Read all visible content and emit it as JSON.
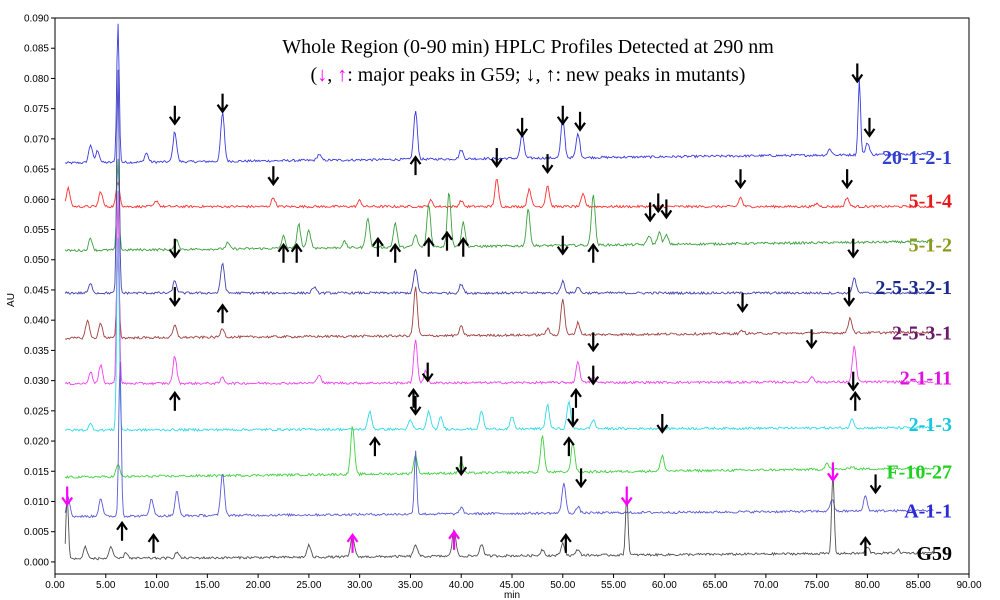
{
  "chart_data": {
    "type": "line",
    "title": "Whole Region (0-90 min) HPLC Profiles Detected at 290 nm",
    "subtitle_parts": [
      "(",
      "↓",
      ", ",
      "↑",
      ": major peaks in G59; ↓, ↑: new peaks in mutants)"
    ],
    "subtitle_colors": [
      "#000000",
      "#ff00ff",
      "#000000",
      "#ff00ff",
      "#000000"
    ],
    "xlabel": "min",
    "ylabel": "AU",
    "xlim": [
      0,
      90
    ],
    "ylim": [
      -0.002,
      0.09
    ],
    "xticks": [
      "0.00",
      "5.00",
      "10.00",
      "15.00",
      "20.00",
      "25.00",
      "30.00",
      "35.00",
      "40.00",
      "45.00",
      "50.00",
      "55.00",
      "60.00",
      "65.00",
      "70.00",
      "75.00",
      "80.00",
      "85.00",
      "90.00"
    ],
    "yticks": [
      "0.000",
      "0.005",
      "0.010",
      "0.015",
      "0.020",
      "0.025",
      "0.030",
      "0.035",
      "0.040",
      "0.045",
      "0.050",
      "0.055",
      "0.060",
      "0.065",
      "0.070",
      "0.075",
      "0.080",
      "0.085",
      "0.090"
    ],
    "series": [
      {
        "name": "20-1-2-1",
        "color": "#3a3ae0",
        "label_color": "#2f3fd0",
        "baseline": 0.066,
        "end_baseline": 0.0675,
        "peaks": [
          [
            3.5,
            0.003
          ],
          [
            4.2,
            0.002
          ],
          [
            6.2,
            0.023
          ],
          [
            9.0,
            0.0015
          ],
          [
            11.8,
            0.005
          ],
          [
            16.5,
            0.008
          ],
          [
            26,
            0.001
          ],
          [
            35.5,
            0.008
          ],
          [
            40,
            0.0015
          ],
          [
            46,
            0.004
          ],
          [
            50,
            0.0065
          ],
          [
            51.5,
            0.004
          ],
          [
            76.3,
            0.001
          ],
          [
            79.2,
            0.0125
          ],
          [
            80,
            0.002
          ]
        ]
      },
      {
        "name": "5-1-4",
        "color": "#ff3030",
        "label_color": "#e81818",
        "baseline": 0.0588,
        "end_baseline": 0.0588,
        "peaks": [
          [
            1.3,
            0.003
          ],
          [
            4.5,
            0.0025
          ],
          [
            6.2,
            0.004
          ],
          [
            10,
            0.001
          ],
          [
            21.5,
            0.0015
          ],
          [
            30,
            0.001
          ],
          [
            37,
            0.001
          ],
          [
            40,
            0.001
          ],
          [
            43.5,
            0.0045
          ],
          [
            46.7,
            0.003
          ],
          [
            48.5,
            0.0035
          ],
          [
            52,
            0.002
          ],
          [
            67.5,
            0.0015
          ],
          [
            75,
            0.0005
          ],
          [
            78,
            0.0015
          ]
        ]
      },
      {
        "name": "5-1-2",
        "color": "#3da03d",
        "label_color": "#8a9a1a",
        "baseline": 0.0515,
        "end_baseline": 0.053,
        "peaks": [
          [
            3.5,
            0.002
          ],
          [
            6.2,
            0.015
          ],
          [
            12,
            0.0015
          ],
          [
            17,
            0.001
          ],
          [
            22.5,
            0.002
          ],
          [
            24,
            0.004
          ],
          [
            25,
            0.003
          ],
          [
            28.5,
            0.001
          ],
          [
            30.8,
            0.005
          ],
          [
            33.5,
            0.004
          ],
          [
            35.5,
            0.002
          ],
          [
            36.8,
            0.007
          ],
          [
            38.8,
            0.009
          ],
          [
            40.2,
            0.004
          ],
          [
            46.6,
            0.006
          ],
          [
            53,
            0.0085
          ],
          [
            58.5,
            0.0015
          ],
          [
            59.5,
            0.002
          ],
          [
            60.2,
            0.0015
          ]
        ]
      },
      {
        "name": "2-5-3-2-1",
        "color": "#4242b0",
        "label_color": "#1a2a8a",
        "baseline": 0.0445,
        "end_baseline": 0.0445,
        "peaks": [
          [
            3.5,
            0.0015
          ],
          [
            6.2,
            0.037
          ],
          [
            11.8,
            0.002
          ],
          [
            16.5,
            0.005
          ],
          [
            25.5,
            0.001
          ],
          [
            35.5,
            0.004
          ],
          [
            40,
            0.0015
          ],
          [
            50,
            0.002
          ],
          [
            51.5,
            0.001
          ],
          [
            78.7,
            0.0025
          ]
        ]
      },
      {
        "name": "2-5-3-1",
        "color": "#a04040",
        "label_color": "#6a1a6a",
        "baseline": 0.037,
        "end_baseline": 0.038,
        "peaks": [
          [
            3.2,
            0.003
          ],
          [
            4.5,
            0.0025
          ],
          [
            6.2,
            0.014
          ],
          [
            11.8,
            0.002
          ],
          [
            16.5,
            0.0015
          ],
          [
            35.5,
            0.008
          ],
          [
            40,
            0.0015
          ],
          [
            48.5,
            0.001
          ],
          [
            50,
            0.006
          ],
          [
            51.5,
            0.002
          ],
          [
            67.7,
            0.0005
          ],
          [
            78.3,
            0.0025
          ]
        ]
      },
      {
        "name": "2-1-11",
        "color": "#f040f0",
        "label_color": "#e010e0",
        "baseline": 0.0295,
        "end_baseline": 0.0298,
        "peaks": [
          [
            3.5,
            0.002
          ],
          [
            4.5,
            0.003
          ],
          [
            6.2,
            0.032
          ],
          [
            11.8,
            0.0045
          ],
          [
            16.5,
            0.001
          ],
          [
            26,
            0.0015
          ],
          [
            35.5,
            0.007
          ],
          [
            36.5,
            0.002
          ],
          [
            51.5,
            0.0035
          ],
          [
            53,
            0.001
          ],
          [
            74.5,
            0.001
          ],
          [
            78.7,
            0.006
          ]
        ]
      },
      {
        "name": "2-1-3",
        "color": "#30d8e8",
        "label_color": "#18c8e0",
        "baseline": 0.0218,
        "end_baseline": 0.0222,
        "peaks": [
          [
            3.5,
            0.001
          ],
          [
            6.2,
            0.032
          ],
          [
            31,
            0.003
          ],
          [
            35,
            0.0015
          ],
          [
            36.8,
            0.003
          ],
          [
            38,
            0.002
          ],
          [
            42,
            0.003
          ],
          [
            45,
            0.002
          ],
          [
            48.5,
            0.004
          ],
          [
            50.6,
            0.0045
          ],
          [
            53,
            0.0015
          ],
          [
            78.5,
            0.0015
          ]
        ]
      },
      {
        "name": "F-10-27",
        "color": "#40d040",
        "label_color": "#20d020",
        "baseline": 0.014,
        "end_baseline": 0.0155,
        "peaks": [
          [
            6.2,
            0.002
          ],
          [
            29.3,
            0.008
          ],
          [
            35.5,
            0.003
          ],
          [
            40,
            0.002
          ],
          [
            48,
            0.006
          ],
          [
            51,
            0.005
          ],
          [
            59.8,
            0.0025
          ],
          [
            76,
            0.001
          ],
          [
            78.5,
            0.0005
          ]
        ]
      },
      {
        "name": "A-1-1",
        "color": "#5a5ad8",
        "label_color": "#2a2ad8",
        "baseline": 0.0075,
        "end_baseline": 0.0085,
        "peaks": [
          [
            1.3,
            0.003
          ],
          [
            4.5,
            0.003
          ],
          [
            6.4,
            0.026
          ],
          [
            9.5,
            0.003
          ],
          [
            12,
            0.004
          ],
          [
            16.5,
            0.007
          ],
          [
            35.5,
            0.0105
          ],
          [
            40,
            0.001
          ],
          [
            50.1,
            0.005
          ],
          [
            51.5,
            0.001
          ],
          [
            76.5,
            0.002
          ],
          [
            79.8,
            0.0025
          ]
        ]
      },
      {
        "name": "G59",
        "color": "#505050",
        "label_color": "#000000",
        "baseline": 0.0005,
        "end_baseline": 0.0015,
        "peaks": [
          [
            1.2,
            0.0105
          ],
          [
            3,
            0.002
          ],
          [
            5.5,
            0.002
          ],
          [
            7,
            0.001
          ],
          [
            12,
            0.001
          ],
          [
            25,
            0.002
          ],
          [
            29.3,
            0.0035
          ],
          [
            35.5,
            0.002
          ],
          [
            39.3,
            0.0045
          ],
          [
            42,
            0.002
          ],
          [
            48,
            0.001
          ],
          [
            50,
            0.002
          ],
          [
            51.5,
            0.001
          ],
          [
            56.3,
            0.0105
          ],
          [
            76.6,
            0.014
          ],
          [
            80,
            0.001
          ],
          [
            83,
            0.0005
          ]
        ]
      }
    ],
    "arrows": [
      {
        "x": 1.2,
        "y": 0.0095,
        "dir": "down",
        "color": "magenta"
      },
      {
        "x": 56.3,
        "y": 0.0095,
        "dir": "down",
        "color": "magenta"
      },
      {
        "x": 76.6,
        "y": 0.0135,
        "dir": "down",
        "color": "magenta"
      },
      {
        "x": 29.3,
        "y": 0.0015,
        "dir": "up",
        "color": "magenta"
      },
      {
        "x": 39.3,
        "y": 0.002,
        "dir": "up",
        "color": "magenta"
      },
      {
        "x": 11.8,
        "y": 0.0725,
        "dir": "down",
        "color": "black"
      },
      {
        "x": 16.5,
        "y": 0.0745,
        "dir": "down",
        "color": "black"
      },
      {
        "x": 35.5,
        "y": 0.064,
        "dir": "up",
        "color": "black"
      },
      {
        "x": 46,
        "y": 0.0705,
        "dir": "down",
        "color": "black"
      },
      {
        "x": 50,
        "y": 0.0725,
        "dir": "down",
        "color": "black"
      },
      {
        "x": 51.7,
        "y": 0.0715,
        "dir": "down",
        "color": "black"
      },
      {
        "x": 79,
        "y": 0.0795,
        "dir": "down",
        "color": "black"
      },
      {
        "x": 80.2,
        "y": 0.0705,
        "dir": "down",
        "color": "black"
      },
      {
        "x": 21.5,
        "y": 0.0625,
        "dir": "down",
        "color": "black"
      },
      {
        "x": 43.5,
        "y": 0.0655,
        "dir": "down",
        "color": "black"
      },
      {
        "x": 48.5,
        "y": 0.0645,
        "dir": "down",
        "color": "black"
      },
      {
        "x": 67.5,
        "y": 0.062,
        "dir": "down",
        "color": "black"
      },
      {
        "x": 78,
        "y": 0.062,
        "dir": "down",
        "color": "black"
      },
      {
        "x": 22.5,
        "y": 0.0495,
        "dir": "up",
        "color": "black"
      },
      {
        "x": 23.8,
        "y": 0.0495,
        "dir": "up",
        "color": "black"
      },
      {
        "x": 31.8,
        "y": 0.0505,
        "dir": "up",
        "color": "black"
      },
      {
        "x": 33.5,
        "y": 0.0495,
        "dir": "up",
        "color": "black"
      },
      {
        "x": 36.8,
        "y": 0.0505,
        "dir": "up",
        "color": "black"
      },
      {
        "x": 38.6,
        "y": 0.0515,
        "dir": "up",
        "color": "black"
      },
      {
        "x": 40.2,
        "y": 0.0505,
        "dir": "up",
        "color": "black"
      },
      {
        "x": 53.0,
        "y": 0.0495,
        "dir": "up",
        "color": "black"
      },
      {
        "x": 58.6,
        "y": 0.0565,
        "dir": "down",
        "color": "black"
      },
      {
        "x": 59.4,
        "y": 0.058,
        "dir": "down",
        "color": "black"
      },
      {
        "x": 60.2,
        "y": 0.057,
        "dir": "down",
        "color": "black"
      },
      {
        "x": 11.8,
        "y": 0.0505,
        "dir": "down",
        "color": "black"
      },
      {
        "x": 16.5,
        "y": 0.0395,
        "dir": "up",
        "color": "black"
      },
      {
        "x": 50.0,
        "y": 0.051,
        "dir": "down",
        "color": "black"
      },
      {
        "x": 78.6,
        "y": 0.0505,
        "dir": "down",
        "color": "black"
      },
      {
        "x": 11.8,
        "y": 0.0425,
        "dir": "down",
        "color": "black"
      },
      {
        "x": 67.7,
        "y": 0.0415,
        "dir": "down",
        "color": "black"
      },
      {
        "x": 78.2,
        "y": 0.0425,
        "dir": "down",
        "color": "black"
      },
      {
        "x": 11.8,
        "y": 0.025,
        "dir": "up",
        "color": "black"
      },
      {
        "x": 35.3,
        "y": 0.0255,
        "dir": "up",
        "color": "black"
      },
      {
        "x": 36.7,
        "y": 0.03,
        "dir": "down",
        "color": "black"
      },
      {
        "x": 51.3,
        "y": 0.0255,
        "dir": "up",
        "color": "black"
      },
      {
        "x": 53.0,
        "y": 0.035,
        "dir": "down",
        "color": "black"
      },
      {
        "x": 74.5,
        "y": 0.0355,
        "dir": "down",
        "color": "black"
      },
      {
        "x": 78.8,
        "y": 0.025,
        "dir": "up",
        "color": "black"
      },
      {
        "x": 31.5,
        "y": 0.0175,
        "dir": "up",
        "color": "black"
      },
      {
        "x": 53.0,
        "y": 0.0295,
        "dir": "down",
        "color": "black"
      },
      {
        "x": 78.6,
        "y": 0.0285,
        "dir": "down",
        "color": "black"
      },
      {
        "x": 35.5,
        "y": 0.0245,
        "dir": "down",
        "color": "black"
      },
      {
        "x": 50.6,
        "y": 0.0175,
        "dir": "up",
        "color": "black"
      },
      {
        "x": 51.0,
        "y": 0.0225,
        "dir": "down",
        "color": "black"
      },
      {
        "x": 59.8,
        "y": 0.0215,
        "dir": "down",
        "color": "black"
      },
      {
        "x": 6.6,
        "y": 0.0035,
        "dir": "up",
        "color": "black"
      },
      {
        "x": 9.7,
        "y": 0.0015,
        "dir": "up",
        "color": "black"
      },
      {
        "x": 40.0,
        "y": 0.0145,
        "dir": "down",
        "color": "black"
      },
      {
        "x": 50.3,
        "y": 0.0015,
        "dir": "up",
        "color": "black"
      },
      {
        "x": 51.8,
        "y": 0.0125,
        "dir": "down",
        "color": "black"
      },
      {
        "x": 80.8,
        "y": 0.0115,
        "dir": "down",
        "color": "black"
      },
      {
        "x": 79.8,
        "y": 0.001,
        "dir": "up",
        "color": "black"
      }
    ]
  }
}
